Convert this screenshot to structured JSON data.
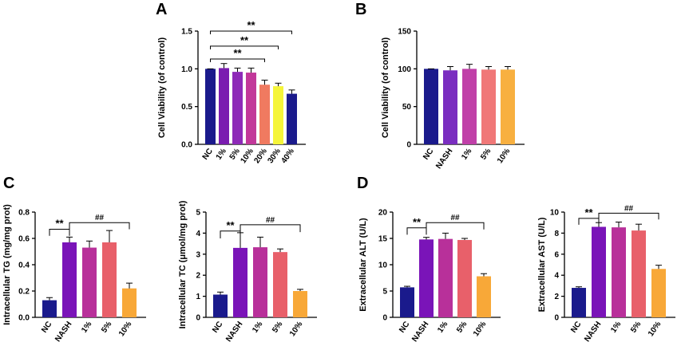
{
  "panel_labels": [
    "A",
    "B",
    "C",
    "D"
  ],
  "chart_data": [
    {
      "id": "A",
      "type": "bar",
      "panel": "A",
      "ylabel": "Cell Viability (of control)",
      "ylim": [
        0,
        1.5
      ],
      "yticks": [
        0.0,
        0.5,
        1.0,
        1.5
      ],
      "ytick_labels": [
        "0.0",
        "0.5",
        "1.0",
        "1.5"
      ],
      "categories": [
        "NC",
        "1%",
        "5%",
        "10%",
        "20%",
        "30%",
        "40%"
      ],
      "values": [
        1.0,
        1.01,
        0.96,
        0.95,
        0.79,
        0.77,
        0.67
      ],
      "errors": [
        0.0,
        0.06,
        0.05,
        0.06,
        0.06,
        0.04,
        0.05
      ],
      "colors": [
        "#1a1a8c",
        "#7a1cb0",
        "#8e2ab8",
        "#c2389a",
        "#f07a60",
        "#f5f53a",
        "#1a1a8c"
      ],
      "annotations": [
        {
          "text": "**",
          "from": 0,
          "to": 6,
          "level": 1.5
        },
        {
          "text": "**",
          "from": 0,
          "to": 5,
          "level": 1.3
        },
        {
          "text": "**",
          "from": 0,
          "to": 4,
          "level": 1.13
        }
      ]
    },
    {
      "id": "B",
      "type": "bar",
      "panel": "B",
      "ylabel": "Cell Viability (of control)",
      "ylim": [
        0,
        150
      ],
      "yticks": [
        0,
        50,
        100,
        150
      ],
      "ytick_labels": [
        "0",
        "50",
        "100",
        "150"
      ],
      "categories": [
        "NC",
        "NASH",
        "1%",
        "5%",
        "10%"
      ],
      "values": [
        100,
        98,
        100,
        99,
        99
      ],
      "errors": [
        0,
        5,
        6,
        4,
        4
      ],
      "colors": [
        "#1a1a8c",
        "#7a2ec0",
        "#c040a8",
        "#f07878",
        "#f8b040"
      ],
      "annotations": []
    },
    {
      "id": "C1",
      "type": "bar",
      "panel": "C",
      "ylabel": "Intracellular TG (mg/mg prot)",
      "ylim": [
        0,
        0.8
      ],
      "yticks": [
        0.0,
        0.2,
        0.4,
        0.6,
        0.8
      ],
      "ytick_labels": [
        "0.0",
        "0.2",
        "0.4",
        "0.6",
        "0.8"
      ],
      "categories": [
        "NC",
        "NASH",
        "1%",
        "5%",
        "10%"
      ],
      "values": [
        0.13,
        0.57,
        0.53,
        0.57,
        0.22
      ],
      "errors": [
        0.02,
        0.04,
        0.05,
        0.09,
        0.04
      ],
      "colors": [
        "#1a1a8c",
        "#7a14b8",
        "#b8309a",
        "#e8606a",
        "#f8a838"
      ],
      "annotations": [
        {
          "text": "**",
          "from": 0,
          "to": 1,
          "level": 0.67,
          "drop": 0.05
        },
        {
          "text": "##",
          "from": 1,
          "to": 4,
          "level": 0.72,
          "drop": 0.05
        }
      ]
    },
    {
      "id": "C2",
      "type": "bar",
      "panel": "C",
      "ylabel": "Intracellular TC (μmol/mg prot)",
      "ylim": [
        0,
        5
      ],
      "yticks": [
        0,
        1,
        2,
        3,
        4,
        5
      ],
      "ytick_labels": [
        "0",
        "1",
        "2",
        "3",
        "4",
        "5"
      ],
      "categories": [
        "NC",
        "NASH",
        "1%",
        "5%",
        "10%"
      ],
      "values": [
        1.08,
        3.3,
        3.33,
        3.1,
        1.25
      ],
      "errors": [
        0.12,
        0.72,
        0.48,
        0.15,
        0.08
      ],
      "colors": [
        "#1a1a8c",
        "#7a14b8",
        "#b8309a",
        "#e8606a",
        "#f8a838"
      ],
      "annotations": [
        {
          "text": "**",
          "from": 0,
          "to": 1,
          "level": 4.1,
          "drop": 0.35
        },
        {
          "text": "##",
          "from": 1,
          "to": 4,
          "level": 4.4,
          "drop": 0.35
        }
      ]
    },
    {
      "id": "D1",
      "type": "bar",
      "panel": "D",
      "ylabel": "Extracellular ALT (U/L)",
      "ylim": [
        0,
        20
      ],
      "yticks": [
        0,
        5,
        10,
        15,
        20
      ],
      "ytick_labels": [
        "0",
        "5",
        "10",
        "15",
        "20"
      ],
      "categories": [
        "NC",
        "NASH",
        "1%",
        "5%",
        "10%"
      ],
      "values": [
        5.7,
        14.8,
        14.9,
        14.7,
        7.8
      ],
      "errors": [
        0.2,
        0.4,
        1.1,
        0.3,
        0.5
      ],
      "colors": [
        "#1a1a8c",
        "#7a14b8",
        "#b8309a",
        "#e8606a",
        "#f8a838"
      ],
      "annotations": [
        {
          "text": "**",
          "from": 0,
          "to": 1,
          "level": 17.0,
          "drop": 1.3
        },
        {
          "text": "##",
          "from": 1,
          "to": 4,
          "level": 18.0,
          "drop": 1.3
        }
      ]
    },
    {
      "id": "D2",
      "type": "bar",
      "panel": "D",
      "ylabel": "Extracellular AST (U/L)",
      "ylim": [
        0,
        10
      ],
      "yticks": [
        0,
        2,
        4,
        6,
        8,
        10
      ],
      "ytick_labels": [
        "0",
        "2",
        "4",
        "6",
        "8",
        "10"
      ],
      "categories": [
        "NC",
        "NASH",
        "1%",
        "5%",
        "10%"
      ],
      "values": [
        2.8,
        8.6,
        8.55,
        8.25,
        4.6
      ],
      "errors": [
        0.1,
        0.4,
        0.5,
        0.6,
        0.35
      ],
      "colors": [
        "#1a1a8c",
        "#7a14b8",
        "#b8309a",
        "#e8606a",
        "#f8a838"
      ],
      "annotations": [
        {
          "text": "**",
          "from": 0,
          "to": 1,
          "level": 9.4,
          "drop": 0.6
        },
        {
          "text": "##",
          "from": 1,
          "to": 4,
          "level": 9.9,
          "drop": 0.6
        }
      ]
    }
  ]
}
